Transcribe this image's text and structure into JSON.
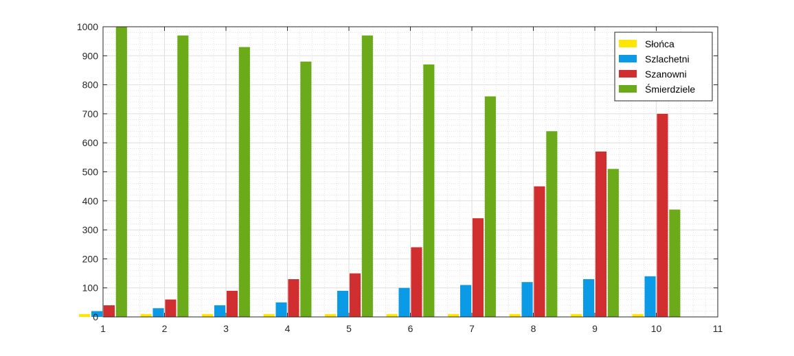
{
  "chart_data": {
    "type": "bar",
    "title": "",
    "xlabel": "",
    "ylabel": "",
    "categories": [
      1,
      2,
      3,
      4,
      5,
      6,
      7,
      8,
      9,
      10
    ],
    "xlim": [
      1,
      11
    ],
    "ylim": [
      0,
      1000
    ],
    "xticks": [
      1,
      2,
      3,
      4,
      5,
      6,
      7,
      8,
      9,
      10,
      11
    ],
    "yticks": [
      0,
      100,
      200,
      300,
      400,
      500,
      600,
      700,
      800,
      900,
      1000
    ],
    "grid": true,
    "minor_grid": true,
    "legend_position": "top-right",
    "series": [
      {
        "name": "Słońca",
        "color": "#FFE600",
        "values": [
          10,
          10,
          10,
          10,
          10,
          10,
          10,
          10,
          10,
          10
        ]
      },
      {
        "name": "Szlachetni",
        "color": "#0B9AE6",
        "values": [
          20,
          30,
          40,
          50,
          90,
          100,
          110,
          120,
          130,
          140
        ]
      },
      {
        "name": "Szanowni",
        "color": "#D12F2F",
        "values": [
          40,
          60,
          90,
          130,
          150,
          240,
          340,
          450,
          570,
          700
        ]
      },
      {
        "name": "Śmierdziele",
        "color": "#6BAA18",
        "values": [
          1000,
          970,
          930,
          880,
          970,
          870,
          760,
          640,
          510,
          370
        ]
      }
    ]
  }
}
